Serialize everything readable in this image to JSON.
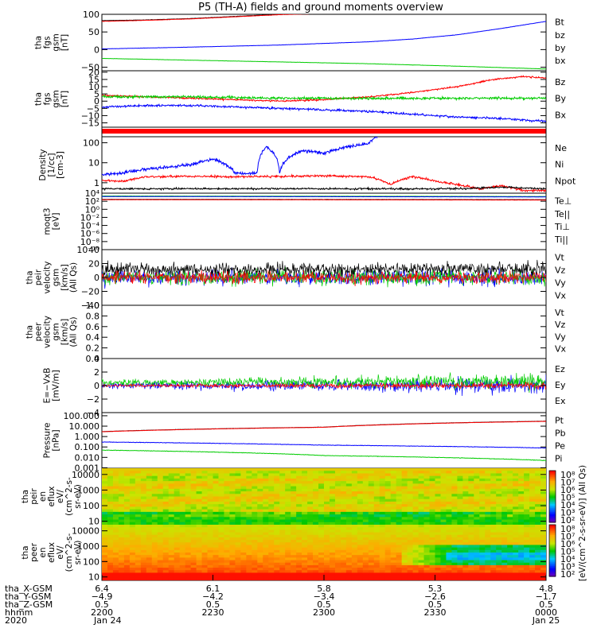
{
  "title": "P5 (TH-A) fields and ground moments overview",
  "colors": {
    "black": "#000000",
    "red": "#ff0000",
    "green": "#00cc00",
    "blue": "#0000ff"
  },
  "chart_data": {
    "type": "line",
    "panels": [
      {
        "name": "fgs-gsm-magnitude",
        "ylabel": [
          "tha",
          "fgs",
          "gsm",
          "[nT]"
        ],
        "ylim": [
          -60,
          100
        ],
        "yticks": [
          {
            "v": -50,
            "t": "−50"
          },
          {
            "v": 0,
            "t": "0"
          },
          {
            "v": 50,
            "t": "50"
          },
          {
            "v": 100,
            "t": "100"
          }
        ],
        "legend": [
          {
            "t": "Bt",
            "c": "black"
          },
          {
            "t": "bz",
            "c": "red"
          },
          {
            "t": "by",
            "c": "green"
          },
          {
            "t": "bx",
            "c": "blue"
          }
        ],
        "series": [
          {
            "name": "Bt",
            "c": "black",
            "x": [
              0,
              0.1,
              0.2,
              0.3,
              0.35,
              0.4,
              0.5
            ],
            "y": [
              82,
              84,
              88,
              94,
              97,
              100,
              103
            ],
            "noise": 0.4
          },
          {
            "name": "bz",
            "c": "red",
            "x": [
              0,
              0.1,
              0.2,
              0.3,
              0.35,
              0.4,
              0.5
            ],
            "y": [
              80,
              83,
              87,
              93,
              96,
              99,
              102
            ],
            "noise": 0.4
          },
          {
            "name": "by",
            "c": "green",
            "x": [
              0,
              0.2,
              0.4,
              0.6,
              0.8,
              1.0
            ],
            "y": [
              -25,
              -30,
              -35,
              -40,
              -47,
              -55
            ],
            "noise": 0.3
          },
          {
            "name": "bx",
            "c": "blue",
            "x": [
              0,
              0.2,
              0.4,
              0.6,
              0.7,
              0.8,
              0.9,
              1.0
            ],
            "y": [
              2,
              7,
              13,
              22,
              30,
              42,
              60,
              80
            ],
            "noise": 0.3
          }
        ]
      },
      {
        "name": "fgs-gsm-components",
        "ylabel": [
          "tha",
          "fgs",
          "gsm",
          "[nT]"
        ],
        "ylim": [
          -18,
          21
        ],
        "yticks": [
          {
            "v": -15,
            "t": "−15"
          },
          {
            "v": -10,
            "t": "−10"
          },
          {
            "v": -5,
            "t": "−5"
          },
          {
            "v": 0,
            "t": "0"
          },
          {
            "v": 5,
            "t": "5"
          },
          {
            "v": 10,
            "t": "10"
          },
          {
            "v": 15,
            "t": "15"
          },
          {
            "v": 20,
            "t": "20"
          }
        ],
        "legend": [
          {
            "t": "Bz",
            "c": "red"
          },
          {
            "t": "By",
            "c": "green"
          },
          {
            "t": "Bx",
            "c": "blue"
          }
        ],
        "series": [
          {
            "name": "Bz",
            "c": "red",
            "x": [
              0,
              0.1,
              0.2,
              0.3,
              0.4,
              0.5,
              0.6,
              0.7,
              0.8,
              0.88,
              0.95,
              1.0
            ],
            "y": [
              4,
              3,
              2,
              1,
              0,
              1,
              3,
              6,
              10,
              15,
              17,
              16
            ],
            "noise": 0.5
          },
          {
            "name": "By",
            "c": "green",
            "x": [
              0,
              0.2,
              0.4,
              0.6,
              0.8,
              1.0
            ],
            "y": [
              3,
              3,
              2,
              2,
              2,
              2
            ],
            "noise": 0.8
          },
          {
            "name": "Bx",
            "c": "blue",
            "x": [
              0,
              0.1,
              0.2,
              0.4,
              0.6,
              0.7,
              0.8,
              0.9,
              0.95,
              1.0
            ],
            "y": [
              -4,
              -3,
              -3,
              -5,
              -7,
              -9,
              -11,
              -12,
              -13,
              -14
            ],
            "noise": 0.7
          }
        ]
      },
      {
        "name": "ground-moments-density",
        "ylabel": [
          "Density",
          "[1/cc]",
          "[cm-3]"
        ],
        "yscale": "log",
        "ylim": [
          0.3,
          200
        ],
        "yticks": [
          {
            "v": 1,
            "t": "1"
          },
          {
            "v": 10,
            "t": "10"
          },
          {
            "v": 100,
            "t": "100"
          }
        ],
        "legend": [
          {
            "t": "Ne",
            "c": "red"
          },
          {
            "t": "Ni",
            "c": "black"
          },
          {
            "t": "Npot",
            "c": "blue"
          }
        ],
        "series": [
          {
            "name": "Ne",
            "c": "red",
            "x": [
              0,
              0.05,
              0.1,
              0.2,
              0.3,
              0.4,
              0.5,
              0.6,
              0.65,
              0.7,
              0.75,
              0.8,
              0.85,
              0.9,
              0.95,
              1.0
            ],
            "y": [
              1.3,
              1.2,
              2.0,
              2.1,
              2.0,
              2.1,
              2.2,
              2.0,
              0.8,
              2.0,
              1.2,
              0.8,
              0.5,
              0.7,
              0.4,
              0.4
            ],
            "noise": 0.05
          },
          {
            "name": "Ni",
            "c": "black",
            "x": [
              0,
              0.2,
              0.4,
              0.6,
              0.8,
              0.9,
              1.0
            ],
            "y": [
              0.5,
              0.5,
              0.5,
              0.5,
              0.5,
              0.6,
              0.5
            ],
            "noise": 0.04
          },
          {
            "name": "Npot",
            "c": "blue",
            "x": [
              0,
              0.05,
              0.1,
              0.15,
              0.2,
              0.25,
              0.3,
              0.35,
              0.37,
              0.4,
              0.45,
              0.5,
              0.55,
              0.6,
              0.62
            ],
            "y": [
              2.5,
              3,
              5,
              6,
              8,
              15,
              3,
              3,
              60,
              3,
              40,
              30,
              60,
              90,
              200
            ],
            "noise": 0.08
          }
        ]
      },
      {
        "name": "ground-moments-temperature",
        "ylabel": [
          "moqt3",
          "[eV]"
        ],
        "yscale": "log",
        "ylim": [
          1e-10,
          10000.0
        ],
        "yticks": [
          {
            "v": 10000.0,
            "t": "10⁴"
          },
          {
            "v": 100.0,
            "t": "10²"
          },
          {
            "v": 1,
            "t": "10⁰"
          },
          {
            "v": 0.01,
            "t": "10⁻²"
          },
          {
            "v": 0.0001,
            "t": "10⁻⁴"
          },
          {
            "v": 1e-06,
            "t": "10⁻⁶"
          },
          {
            "v": 1e-08,
            "t": "10⁻⁸"
          },
          {
            "v": 1e-10,
            "t": "10⁻¹⁰"
          }
        ],
        "legend": [
          {
            "t": "Te⊥",
            "c": "red"
          },
          {
            "t": "Te||",
            "c": "black"
          },
          {
            "t": "Ti⊥",
            "c": "blue"
          },
          {
            "t": "Ti||",
            "c": "green"
          }
        ],
        "series": [
          {
            "name": "Ti",
            "c": "green",
            "x": [
              0,
              1
            ],
            "y": [
              2000,
              1500
            ],
            "noise": 0.02
          },
          {
            "name": "Ti-perp",
            "c": "blue",
            "x": [
              0,
              1
            ],
            "y": [
              1500,
              1200
            ],
            "noise": 0.02
          },
          {
            "name": "Te",
            "c": "black",
            "x": [
              0,
              1
            ],
            "y": [
              300,
              250
            ],
            "noise": 0.02
          },
          {
            "name": "Te-perp",
            "c": "red",
            "x": [
              0,
              1
            ],
            "y": [
              250,
              200
            ],
            "noise": 0.02
          }
        ]
      },
      {
        "name": "peir-velocity",
        "ylabel": [
          "tha",
          "peir",
          "velocity",
          "gsm",
          "[km/s]",
          "(All Qs)"
        ],
        "ylim": [
          -40,
          40
        ],
        "yticks": [
          {
            "v": -40,
            "t": "−40"
          },
          {
            "v": -20,
            "t": "−20"
          },
          {
            "v": 0,
            "t": "0"
          },
          {
            "v": 20,
            "t": "20"
          },
          {
            "v": 40,
            "t": "40"
          }
        ],
        "legend": [
          {
            "t": "Vt",
            "c": "black"
          },
          {
            "t": "Vz",
            "c": "red"
          },
          {
            "t": "Vy",
            "c": "green"
          },
          {
            "t": "Vx",
            "c": "blue"
          }
        ],
        "series": [
          {
            "name": "Vx",
            "c": "blue",
            "x": [
              0,
              1
            ],
            "y": [
              0,
              0
            ],
            "noise": 10
          },
          {
            "name": "Vy",
            "c": "green",
            "x": [
              0,
              1
            ],
            "y": [
              0,
              0
            ],
            "noise": 10
          },
          {
            "name": "Vt",
            "c": "black",
            "x": [
              0,
              1
            ],
            "y": [
              12,
              12
            ],
            "noise": 9
          },
          {
            "name": "Vz",
            "c": "red",
            "x": [
              0,
              1
            ],
            "y": [
              0,
              0
            ],
            "noise": 8
          }
        ]
      },
      {
        "name": "peer-velocity",
        "ylabel": [
          "tha",
          "peer",
          "velocity",
          "gsm",
          "[km/s]",
          "(All Qs)"
        ],
        "ylim": [
          0,
          1
        ],
        "yticks": [
          {
            "v": 0,
            "t": "0.0"
          },
          {
            "v": 0.2,
            "t": "0.2"
          },
          {
            "v": 0.4,
            "t": "0.4"
          },
          {
            "v": 0.6,
            "t": "0.6"
          },
          {
            "v": 0.8,
            "t": "0.8"
          },
          {
            "v": 1.0,
            "t": "1.0"
          }
        ],
        "legend": [
          {
            "t": "Vt",
            "c": "black"
          },
          {
            "t": "Vz",
            "c": "red"
          },
          {
            "t": "Vy",
            "c": "green"
          },
          {
            "t": "Vx",
            "c": "blue"
          }
        ],
        "series": []
      },
      {
        "name": "e-field",
        "ylabel": [
          "E=−VxB",
          "[mV/m]"
        ],
        "ylim": [
          -4,
          4
        ],
        "yticks": [
          {
            "v": -4,
            "t": "−4"
          },
          {
            "v": -2,
            "t": "−2"
          },
          {
            "v": 0,
            "t": "0"
          },
          {
            "v": 2,
            "t": "2"
          },
          {
            "v": 4,
            "t": "4"
          }
        ],
        "legend": [
          {
            "t": "Ez",
            "c": "red"
          },
          {
            "t": "Ey",
            "c": "green"
          },
          {
            "t": "Ex",
            "c": "blue"
          }
        ],
        "series": [
          {
            "name": "Ex",
            "c": "blue",
            "x": [
              0,
              1
            ],
            "y": [
              0,
              0
            ],
            "noise": 0.7
          },
          {
            "name": "Ey",
            "c": "green",
            "x": [
              0,
              1
            ],
            "y": [
              0.4,
              0.6
            ],
            "noise": 0.7
          },
          {
            "name": "Ez",
            "c": "red",
            "x": [
              0,
              1
            ],
            "y": [
              0,
              0
            ],
            "noise": 0.3
          }
        ]
      },
      {
        "name": "pressure",
        "ylabel": [
          "Pressure",
          "[nPa]"
        ],
        "yscale": "log",
        "ylim": [
          0.0009,
          200
        ],
        "yticks": [
          {
            "v": 0.001,
            "t": "0.001"
          },
          {
            "v": 0.01,
            "t": "0.010"
          },
          {
            "v": 0.1,
            "t": "0.100"
          },
          {
            "v": 1,
            "t": "1.000"
          },
          {
            "v": 10,
            "t": "10.000"
          },
          {
            "v": 100,
            "t": "100.000"
          }
        ],
        "legend": [
          {
            "t": "Pt",
            "c": "black"
          },
          {
            "t": "Pb",
            "c": "red"
          },
          {
            "t": "Pe",
            "c": "green"
          },
          {
            "t": "Pi",
            "c": "blue"
          }
        ],
        "series": [
          {
            "name": "Pt",
            "c": "black",
            "x": [
              0,
              0.5,
              1.0
            ],
            "y": [
              3,
              8,
              30
            ],
            "noise": 0.01
          },
          {
            "name": "Pb",
            "c": "red",
            "x": [
              0,
              0.5,
              1.0
            ],
            "y": [
              2.9,
              7.8,
              29
            ],
            "noise": 0.01
          },
          {
            "name": "Pi",
            "c": "blue",
            "x": [
              0,
              0.5,
              1.0
            ],
            "y": [
              0.3,
              0.15,
              0.08
            ],
            "noise": 0.02
          },
          {
            "name": "Pe",
            "c": "green",
            "x": [
              0,
              0.5,
              1.0
            ],
            "y": [
              0.05,
              0.015,
              0.005
            ],
            "noise": 0.02
          }
        ]
      },
      {
        "name": "peir-en-eflux",
        "type": "heatmap",
        "ylabel": [
          "tha",
          "peir",
          "en",
          "eflux",
          "eV/",
          "(cm^2-s-",
          "sr-eV)"
        ],
        "yscale": "log",
        "ylim": [
          6,
          25000
        ],
        "yticks": [
          {
            "v": 10,
            "t": "10"
          },
          {
            "v": 100,
            "t": "100"
          },
          {
            "v": 1000,
            "t": "1000"
          },
          {
            "v": 10000,
            "t": "10000"
          }
        ]
      },
      {
        "name": "peer-en-eflux",
        "type": "heatmap",
        "ylabel": [
          "tha",
          "peer",
          "en",
          "eflux",
          "eV/",
          "(cm^2-s-",
          "sr-eV)"
        ],
        "yscale": "log",
        "ylim": [
          6,
          25000
        ],
        "yticks": [
          {
            "v": 10,
            "t": "10"
          },
          {
            "v": 100,
            "t": "100"
          },
          {
            "v": 1000,
            "t": "1000"
          },
          {
            "v": 10000,
            "t": "10000"
          }
        ]
      }
    ],
    "colorbar": {
      "label": "[eV/(cm^2-s-sr-eV)] (All Qs)",
      "ticks_top": [
        "10⁸",
        "10⁷",
        "10⁶",
        "10⁵",
        "10⁴",
        "10³",
        "10²"
      ],
      "ticks_bottom": [
        "10⁸",
        "10⁷",
        "10⁶",
        "10⁵",
        "10⁴",
        "10³",
        "10²"
      ]
    },
    "x_axis": {
      "row_labels": [
        "tha_X-GSM",
        "tha_Y-GSM",
        "tha_Z-GSM",
        "hhmm",
        "2020"
      ],
      "ticks": [
        {
          "x": 0.0,
          "rows": [
            "6.4",
            "−4.9",
            "0.5",
            "2200",
            "Jan 24"
          ]
        },
        {
          "x": 0.25,
          "rows": [
            "6.1",
            "−4.2",
            "0.5",
            "2230",
            ""
          ]
        },
        {
          "x": 0.5,
          "rows": [
            "5.8",
            "−3.4",
            "0.5",
            "2300",
            ""
          ]
        },
        {
          "x": 0.75,
          "rows": [
            "5.3",
            "−2.6",
            "0.5",
            "2330",
            ""
          ]
        },
        {
          "x": 1.0,
          "rows": [
            "4.8",
            "−1.7",
            "0.5",
            "0000",
            "Jan 25"
          ]
        }
      ]
    }
  }
}
